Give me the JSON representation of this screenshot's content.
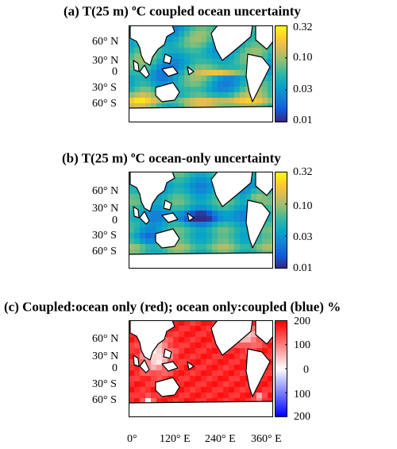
{
  "chart_data": [
    {
      "type": "heatmap",
      "title_prefix": "(a) T(25 m) ",
      "title_super": "o",
      "title_suffix": "C coupled ocean uncertainty",
      "lat_labels": [
        "60° N",
        "30° N",
        "0",
        "30° S",
        "60° S"
      ],
      "colorbar": {
        "scale": "log",
        "ticks": [
          "0.32",
          "0.10",
          "0.03",
          "0.01"
        ]
      },
      "field": "coupled_uncertainty"
    },
    {
      "type": "heatmap",
      "title_prefix": "(b) T(25 m) ",
      "title_super": "o",
      "title_suffix": "C ocean-only uncertainty",
      "lat_labels": [
        "60° N",
        "30° N",
        "0",
        "30° S",
        "60° S"
      ],
      "colorbar": {
        "scale": "log",
        "ticks": [
          "0.32",
          "0.10",
          "0.03",
          "0.01"
        ]
      },
      "field": "ocean_only_uncertainty"
    },
    {
      "type": "heatmap",
      "title_prefix": "(c) Coupled:ocean only (red);  ocean only:coupled (blue) %",
      "title_super": "",
      "title_suffix": "",
      "lat_labels": [
        "60° N",
        "30° N",
        "0",
        "30° S",
        "60° S"
      ],
      "colorbar": {
        "scale": "diverging",
        "ticks": [
          "200",
          "100",
          "0",
          "100",
          "200"
        ]
      },
      "field": "ratio_percent"
    }
  ],
  "lon_labels": [
    "0°",
    "120° E",
    "240° E",
    "360° E"
  ],
  "colors": {
    "parula": [
      "#352a87",
      "#0f5cdd",
      "#1481d6",
      "#06a4ca",
      "#2eb7a4",
      "#87bf77",
      "#d1bb59",
      "#fec832",
      "#f9fb0e"
    ],
    "diverging": [
      "#0000ff",
      "#ffffff",
      "#ff0000"
    ],
    "land": "#ffffff",
    "coast": "#000000"
  }
}
